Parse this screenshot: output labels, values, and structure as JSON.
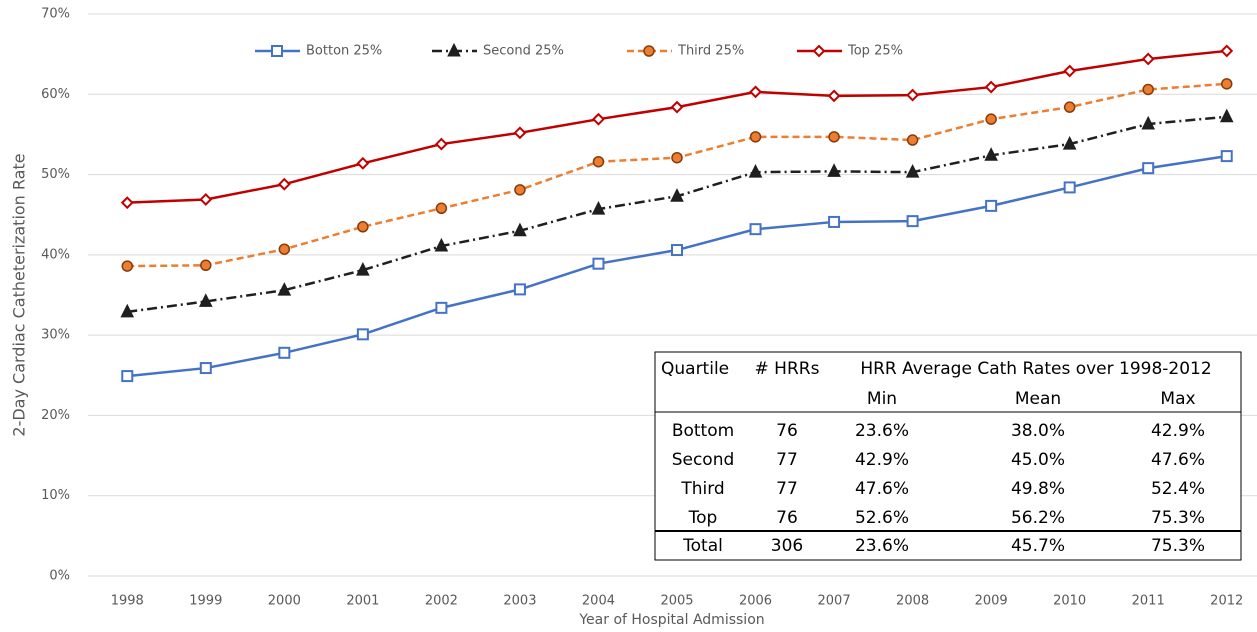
{
  "chart_data": {
    "type": "line",
    "ylabel": "2-Day Cardiac Catheterization Rate",
    "xlabel": "Year of Hospital Admission",
    "categories": [
      1998,
      1999,
      2000,
      2001,
      2002,
      2003,
      2004,
      2005,
      2006,
      2007,
      2008,
      2009,
      2010,
      2011,
      2012
    ],
    "ylim": [
      0,
      70
    ],
    "yticks": [
      {
        "value": 0,
        "label": "0%"
      },
      {
        "value": 10,
        "label": "10%"
      },
      {
        "value": 20,
        "label": "20%"
      },
      {
        "value": 30,
        "label": "30%"
      },
      {
        "value": 40,
        "label": "40%"
      },
      {
        "value": 50,
        "label": "50%"
      },
      {
        "value": 60,
        "label": "60%"
      },
      {
        "value": 70,
        "label": "70%"
      }
    ],
    "grid": true,
    "legend": "top",
    "series": [
      {
        "name": "Botton 25%",
        "color": "#4472c4",
        "marker": "square",
        "dash": "solid",
        "values": [
          24.9,
          25.9,
          27.8,
          30.1,
          33.4,
          35.7,
          38.9,
          40.6,
          43.2,
          44.1,
          44.2,
          46.1,
          48.4,
          50.8,
          52.3
        ]
      },
      {
        "name": "Second 25%",
        "color": "#1f1f1f",
        "marker": "triangle",
        "dash": "dashdot",
        "values": [
          32.9,
          34.2,
          35.6,
          38.1,
          41.1,
          43.0,
          45.7,
          47.3,
          50.3,
          50.4,
          50.3,
          52.4,
          53.8,
          56.3,
          57.2
        ]
      },
      {
        "name": "Third 25%",
        "color": "#ed7d31",
        "marker": "circle",
        "dash": "dash",
        "values": [
          38.6,
          38.7,
          40.7,
          43.5,
          45.8,
          48.1,
          51.6,
          52.1,
          54.7,
          54.7,
          54.3,
          56.9,
          58.4,
          60.6,
          61.3
        ]
      },
      {
        "name": "Top 25%",
        "color": "#c00000",
        "marker": "diamond",
        "dash": "solid",
        "values": [
          46.5,
          46.9,
          48.8,
          51.4,
          53.8,
          55.2,
          56.9,
          58.4,
          60.3,
          59.8,
          59.9,
          60.9,
          62.9,
          64.4,
          65.4
        ]
      }
    ],
    "table": {
      "header": [
        "Quartile",
        "# HRRs",
        "HRR Average Cath Rates over 1998-2012"
      ],
      "subheader": [
        "Min",
        "Mean",
        "Max"
      ],
      "rows": [
        [
          "Bottom",
          "76",
          "23.6%",
          "38.0%",
          "42.9%"
        ],
        [
          "Second",
          "77",
          "42.9%",
          "45.0%",
          "47.6%"
        ],
        [
          "Third",
          "77",
          "47.6%",
          "49.8%",
          "52.4%"
        ],
        [
          "Top",
          "76",
          "52.6%",
          "56.2%",
          "75.3%"
        ]
      ],
      "total": [
        "Total",
        "306",
        "23.6%",
        "45.7%",
        "75.3%"
      ]
    }
  }
}
